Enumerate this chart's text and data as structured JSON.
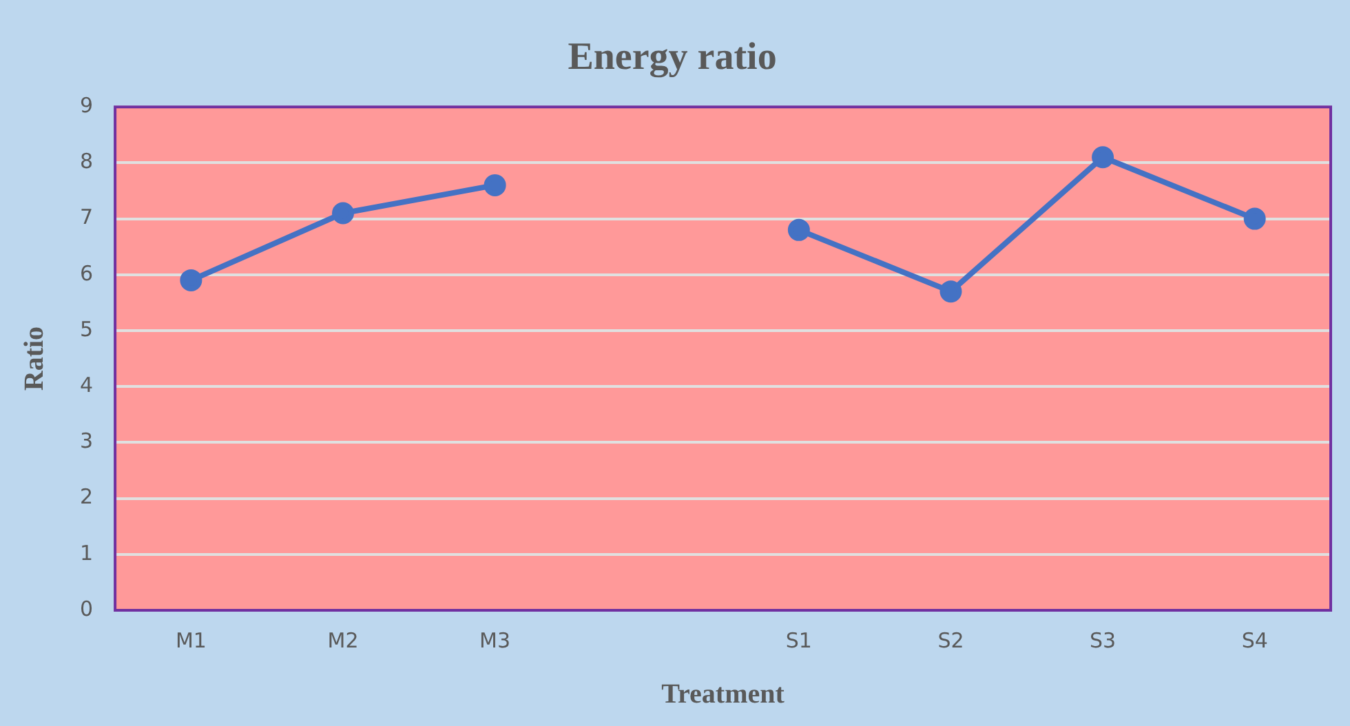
{
  "chart_data": {
    "type": "line",
    "title": "Energy ratio",
    "xlabel": "Treatment",
    "ylabel": "Ratio",
    "categories": [
      "M1",
      "M2",
      "M3",
      null,
      "S1",
      "S2",
      "S3",
      "S4"
    ],
    "series": [
      {
        "color": "#4472c4",
        "values": [
          5.9,
          7.1,
          7.6,
          null,
          6.8,
          5.7,
          8.1,
          7.0
        ]
      }
    ],
    "ylim": [
      0,
      9
    ],
    "yticks": [
      0,
      1,
      2,
      3,
      4,
      5,
      6,
      7,
      8,
      9
    ],
    "grid": "y",
    "legend": false,
    "marker": "circle",
    "line_style": "solid"
  }
}
